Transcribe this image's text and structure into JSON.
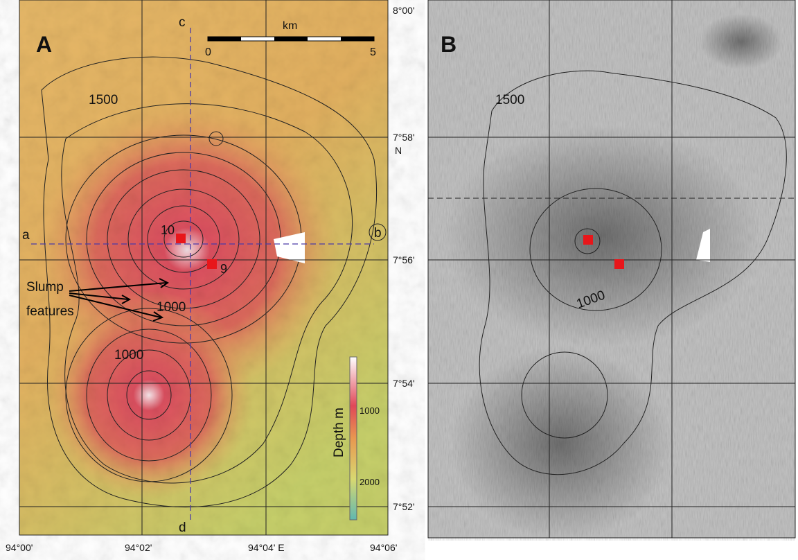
{
  "panel_a": {
    "label": "A",
    "profile_labels": [
      "c",
      "d",
      "a",
      "b"
    ],
    "scale": {
      "unit": "km",
      "start": 0,
      "end": 5
    },
    "contour_labels": [
      1500,
      1000,
      1000
    ],
    "site_labels": [
      10,
      9
    ],
    "annotation": [
      "Slump",
      "features"
    ],
    "colorbar": {
      "title": "Depth m",
      "ticks": [
        1000,
        2000
      ]
    }
  },
  "panel_b": {
    "label": "B",
    "contour_labels": [
      1500,
      1000
    ]
  },
  "latitude_labels": [
    "8°00'",
    "7°58'",
    "N",
    "7°56'",
    "7°54'",
    "7°52'"
  ],
  "longitude_labels": [
    "94°00'",
    "94°02'",
    "94°04' E",
    "94°06'"
  ]
}
